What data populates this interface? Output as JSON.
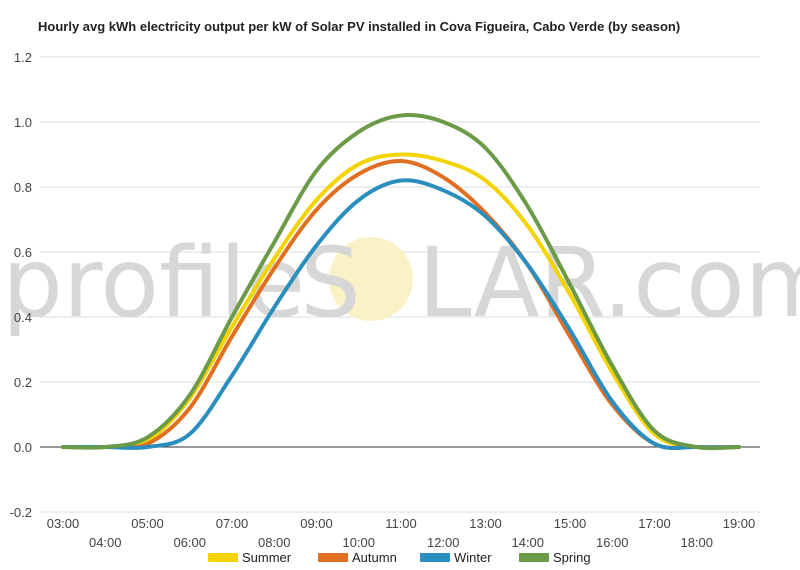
{
  "watermark": {
    "left": "profile",
    "mid": "S",
    "right": "LAR.com",
    "sun_color": "#fbf1c6"
  },
  "chart_data": {
    "type": "line",
    "title": "Hourly avg kWh electricity output per kW of Solar PV installed in Cova Figueira, Cabo Verde (by season)",
    "xlabel": "",
    "ylabel": "",
    "ylim": [
      -0.2,
      1.2
    ],
    "yticks": [
      "-0.2",
      "0.0",
      "0.2",
      "0.4",
      "0.6",
      "0.8",
      "1.0",
      "1.2"
    ],
    "x_hours": [
      3,
      4,
      5,
      6,
      7,
      8,
      9,
      10,
      11,
      12,
      13,
      14,
      15,
      16,
      17,
      18,
      19
    ],
    "x_labels": [
      "03:00",
      "04:00",
      "05:00",
      "06:00",
      "07:00",
      "08:00",
      "09:00",
      "10:00",
      "11:00",
      "12:00",
      "13:00",
      "14:00",
      "15:00",
      "16:00",
      "17:00",
      "18:00",
      "19:00"
    ],
    "grid": true,
    "legend_position": "bottom",
    "series": [
      {
        "name": "Summer",
        "color": "#f4d400",
        "values": [
          0.0,
          0.0,
          0.02,
          0.15,
          0.37,
          0.58,
          0.76,
          0.87,
          0.9,
          0.88,
          0.82,
          0.68,
          0.47,
          0.23,
          0.04,
          0.0,
          0.0
        ]
      },
      {
        "name": "Autumn",
        "color": "#e06f22",
        "values": [
          0.0,
          0.0,
          0.01,
          0.12,
          0.34,
          0.55,
          0.73,
          0.84,
          0.88,
          0.83,
          0.72,
          0.56,
          0.34,
          0.13,
          0.01,
          0.0,
          0.0
        ]
      },
      {
        "name": "Winter",
        "color": "#2a8fbf",
        "values": [
          0.0,
          0.0,
          0.0,
          0.04,
          0.22,
          0.43,
          0.62,
          0.76,
          0.82,
          0.79,
          0.71,
          0.56,
          0.36,
          0.14,
          0.01,
          0.0,
          0.0
        ]
      },
      {
        "name": "Spring",
        "color": "#6b9a48",
        "values": [
          0.0,
          0.0,
          0.03,
          0.16,
          0.4,
          0.63,
          0.85,
          0.97,
          1.02,
          1.0,
          0.92,
          0.74,
          0.5,
          0.25,
          0.05,
          0.0,
          0.0
        ]
      }
    ]
  }
}
